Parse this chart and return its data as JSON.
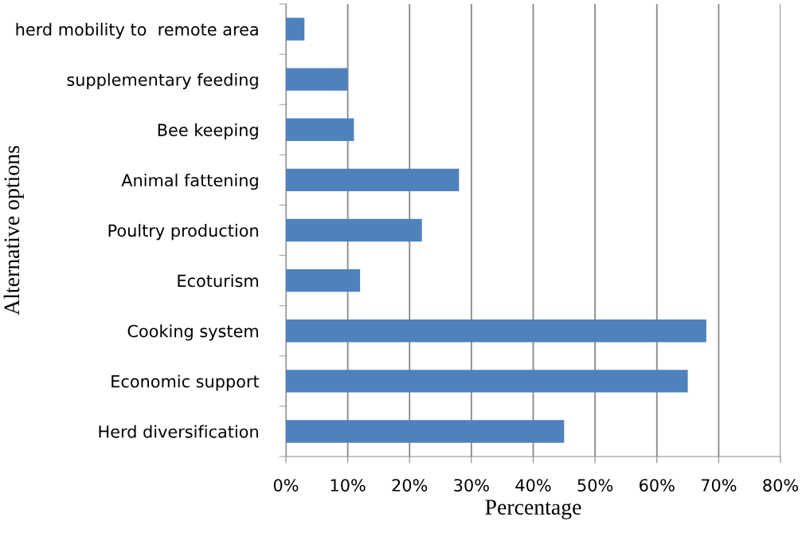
{
  "chart_data": {
    "type": "bar",
    "orientation": "horizontal",
    "xlabel": "Percentage",
    "ylabel": "Alternative options",
    "categories": [
      "herd mobility to  remote area",
      "supplementary feeding",
      "Bee keeping",
      "Animal fattening",
      "Poultry production",
      "Ecoturism",
      "Cooking system",
      "Economic support",
      "Herd diversification"
    ],
    "values": [
      3,
      10,
      11,
      28,
      22,
      12,
      68,
      65,
      45
    ],
    "color": "#4f81bd",
    "xlim": [
      0,
      80
    ],
    "xticks": [
      {
        "value": 0,
        "label": "0%"
      },
      {
        "value": 10,
        "label": "10%"
      },
      {
        "value": 20,
        "label": "20%"
      },
      {
        "value": 30,
        "label": "30%"
      },
      {
        "value": 40,
        "label": "40%"
      },
      {
        "value": 50,
        "label": "50%"
      },
      {
        "value": 60,
        "label": "60%"
      },
      {
        "value": 70,
        "label": "70%"
      },
      {
        "value": 80,
        "label": "80%"
      }
    ],
    "grid": "x"
  }
}
